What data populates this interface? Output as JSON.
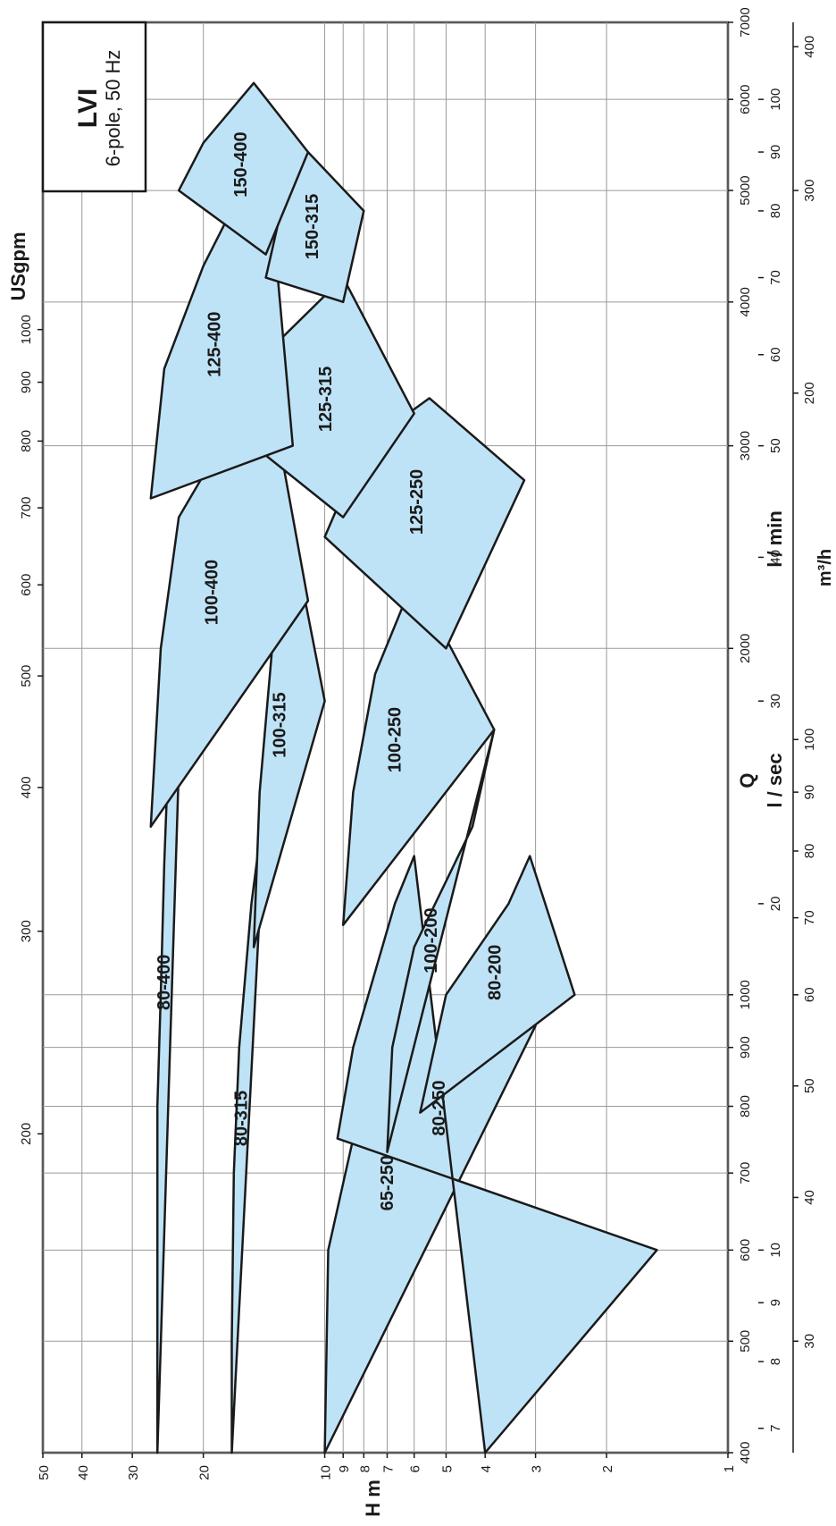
{
  "chart_data": {
    "type": "area",
    "title": "LVI",
    "subtitle": "6-pole, 50 Hz",
    "x_axis": {
      "label": "Q",
      "units": [
        "USgpm",
        "l / min",
        "l / sec",
        "m³/h"
      ],
      "scale": "log",
      "range_l_per_min": [
        400,
        7000
      ],
      "ticks_usgpm": [
        "200",
        "300",
        "400",
        "500",
        "600",
        "700",
        "800",
        "900",
        "1000"
      ],
      "ticks_lmin": [
        "400",
        "500",
        "600",
        "700",
        "800",
        "900",
        "1000",
        "2000",
        "3000",
        "4000",
        "5000",
        "6000",
        "7000"
      ],
      "ticks_lsec": [
        "7",
        "8",
        "9",
        "10",
        "20",
        "30",
        "40",
        "50",
        "60",
        "70",
        "80",
        "90",
        "100"
      ],
      "ticks_m3h": [
        "30",
        "40",
        "50",
        "60",
        "70",
        "80",
        "90",
        "100",
        "200",
        "300",
        "400"
      ]
    },
    "y_axis": {
      "label": "H m",
      "scale": "log",
      "range": [
        1,
        50
      ],
      "ticks": [
        "1",
        "2",
        "3",
        "4",
        "5",
        "6",
        "7",
        "8",
        "9",
        "10",
        "20",
        "30",
        "40",
        "50"
      ]
    },
    "grid": true,
    "fill_color": "#bfe3f6",
    "stroke_color": "#1a1a1a",
    "series": [
      {
        "name": "80-400",
        "points": [
          [
            400,
            26
          ],
          [
            580,
            26
          ],
          [
            800,
            26
          ],
          [
            1000,
            25.5
          ],
          [
            1300,
            25
          ],
          [
            1900,
            24
          ],
          [
            2600,
            22
          ]
        ]
      },
      {
        "name": "80-315",
        "points": [
          [
            400,
            17
          ],
          [
            500,
            17
          ],
          [
            700,
            16.8
          ],
          [
            900,
            16.3
          ],
          [
            1200,
            15.2
          ],
          [
            1500,
            14
          ]
        ]
      },
      {
        "name": "65-250",
        "points": [
          [
            400,
            10
          ],
          [
            600,
            9.8
          ],
          [
            750,
            8.5
          ],
          [
            900,
            6.5
          ],
          [
            940,
            3
          ]
        ]
      },
      {
        "name": "80-250",
        "points": [
          [
            400,
            4
          ],
          [
            600,
            1.5
          ],
          [
            750,
            9.3
          ],
          [
            900,
            8.5
          ],
          [
            1200,
            6.7
          ],
          [
            1320,
            6
          ]
        ]
      },
      {
        "name": "100-200",
        "points": [
          [
            730,
            7
          ],
          [
            900,
            6.8
          ],
          [
            1100,
            6
          ],
          [
            1400,
            4.3
          ],
          [
            1700,
            3.8
          ]
        ]
      },
      {
        "name": "80-200",
        "points": [
          [
            790,
            5.8
          ],
          [
            1000,
            5
          ],
          [
            1200,
            3.5
          ],
          [
            1320,
            3.1
          ],
          [
            1000,
            2.4
          ]
        ]
      },
      {
        "name": "100-250",
        "points": [
          [
            1150,
            9
          ],
          [
            1500,
            8.5
          ],
          [
            1900,
            7.5
          ],
          [
            2300,
            6
          ],
          [
            1700,
            3.8
          ]
        ]
      },
      {
        "name": "100-315",
        "points": [
          [
            1100,
            15
          ],
          [
            1500,
            14.5
          ],
          [
            2000,
            13.5
          ],
          [
            2500,
            12
          ],
          [
            1800,
            10
          ]
        ]
      },
      {
        "name": "100-400",
        "points": [
          [
            1400,
            27
          ],
          [
            2000,
            25.5
          ],
          [
            2600,
            23
          ],
          [
            3500,
            14
          ],
          [
            2200,
            11
          ]
        ]
      },
      {
        "name": "125-250",
        "points": [
          [
            2500,
            10
          ],
          [
            3000,
            8
          ],
          [
            3300,
            5.5
          ],
          [
            2800,
            3.2
          ],
          [
            2000,
            5
          ]
        ]
      },
      {
        "name": "125-315",
        "points": [
          [
            3000,
            15
          ],
          [
            3700,
            13
          ],
          [
            4200,
            9
          ],
          [
            3200,
            6
          ],
          [
            2600,
            9
          ]
        ]
      },
      {
        "name": "125-400",
        "points": [
          [
            2700,
            27
          ],
          [
            3500,
            25
          ],
          [
            4300,
            20
          ],
          [
            5500,
            14
          ],
          [
            3000,
            12
          ]
        ]
      },
      {
        "name": "150-315",
        "points": [
          [
            4200,
            14
          ],
          [
            5000,
            12.5
          ],
          [
            5400,
            11
          ],
          [
            4800,
            8
          ],
          [
            4000,
            9
          ]
        ]
      },
      {
        "name": "150-400",
        "points": [
          [
            5000,
            23
          ],
          [
            5500,
            20
          ],
          [
            6200,
            15
          ],
          [
            5400,
            11
          ],
          [
            4400,
            14
          ]
        ]
      }
    ]
  }
}
